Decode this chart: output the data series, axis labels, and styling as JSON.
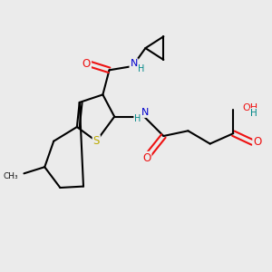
{
  "bg_color": "#ebebeb",
  "atom_colors": {
    "C": "#000000",
    "N": "#0000cc",
    "O": "#ee1111",
    "S": "#bbaa00",
    "H": "#008888"
  },
  "bond_color": "#000000",
  "bond_width": 1.5,
  "figsize": [
    3.0,
    3.0
  ],
  "dpi": 100
}
